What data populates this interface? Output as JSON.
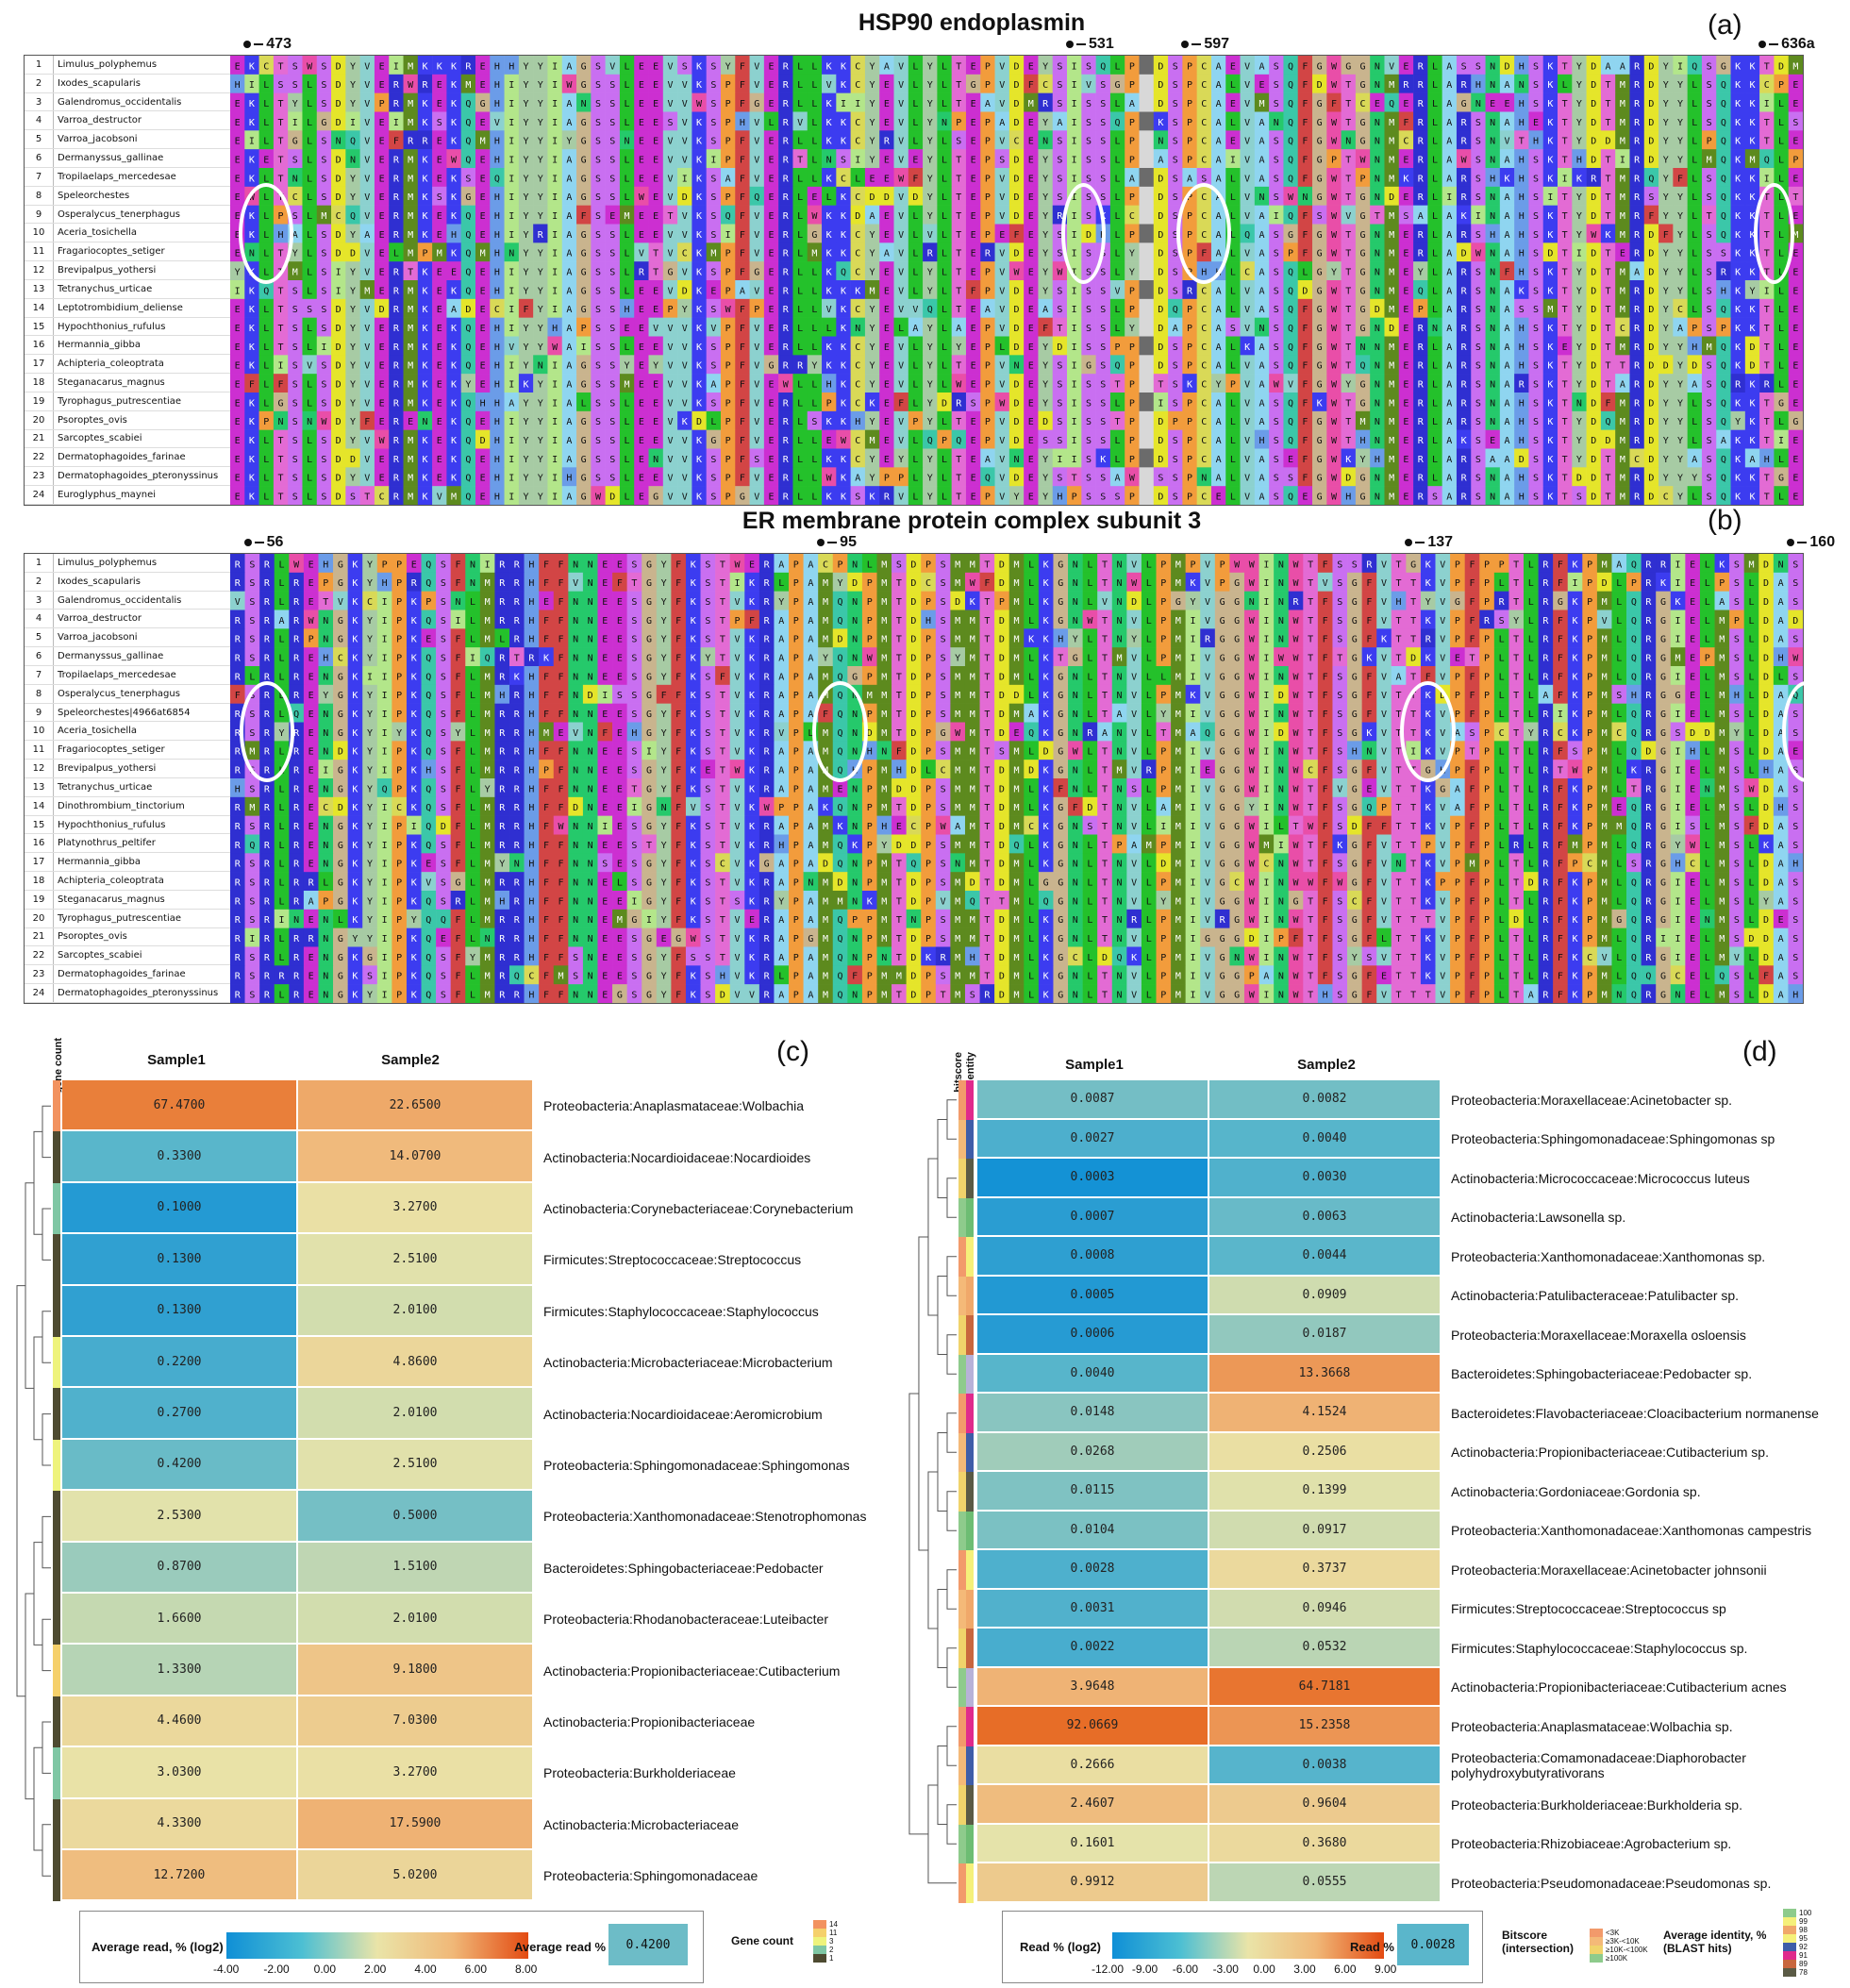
{
  "panel_a": {
    "title": "HSP90 endoplasmin",
    "letter": "(a)",
    "markers": [
      "473",
      "531",
      "597",
      "636a"
    ],
    "species": [
      "Limulus_polyphemus",
      "Ixodes_scapularis",
      "Galendromus_occidentalis",
      "Varroa_destructor",
      "Varroa_jacobsoni",
      "Dermanyssus_gallinae",
      "Tropilaelaps_mercedesae",
      "Speleorchestes",
      "Osperalycus_tenerphagus",
      "Aceria_tosichella",
      "Fragariocoptes_setiger",
      "Brevipalpus_yothersi",
      "Tetranychus_urticae",
      "Leptotrombidium_deliense",
      "Hypochthonius_rufulus",
      "Hermannia_gibba",
      "Achipteria_coleoptrata",
      "Steganacarus_magnus",
      "Tyrophagus_putrescentiae",
      "Psoroptes_ovis",
      "Sarcoptes_scabiei",
      "Dermatophagoides_farinae",
      "Dermatophagoides_pteronyssinus",
      "Euroglyphus_maynei"
    ],
    "consensus": "EKLTSLSDYVERMKEKQEHIYYIAGSSLEEVVKSPFVERLLKKCYEVLYLTEPVDEYSISSLPEDSPCALVASQFGWTGNMERLARSNAHSKTYDTMRDYYLSQKKTLE"
  },
  "panel_b": {
    "title": "ER membrane protein complex subunit 3",
    "letter": "(b)",
    "markers": [
      "56",
      "95",
      "137",
      "160"
    ],
    "species": [
      "Limulus_polyphemus",
      "Ixodes_scapularis",
      "Galendromus_occidentalis",
      "Varroa_destructor",
      "Varroa_jacobsoni",
      "Dermanyssus_gallinae",
      "Tropilaelaps_mercedesae",
      "Osperalycus_tenerphagus",
      "Speleorchestes|4966at6854",
      "Aceria_tosichella",
      "Fragariocoptes_setiger",
      "Brevipalpus_yothersi",
      "Tetranychus_urticae",
      "Dinothrombium_tinctorium",
      "Hypochthonius_rufulus",
      "Platynothrus_peltifer",
      "Hermannia_gibba",
      "Achipteria_coleoptrata",
      "Steganacarus_magnus",
      "Tyrophagus_putrescentiae",
      "Psoroptes_ovis",
      "Sarcoptes_scabiei",
      "Dermatophagoides_farinae",
      "Dermatophagoides_pteronyssinus"
    ],
    "consensus": "RSRLRENGKYIPKQSFLMRRHFFNNEESGYFKSTVKRAPAMQNPMTDPSMMTDMLKGNLTNVLPMIVGGWINWTFSGFVTTKVPFPLTLRFKPMLQRGIELMSLDAS"
  },
  "panel_c": {
    "letter": "(c)",
    "side_label": "gene count",
    "col_heads": [
      "Sample1",
      "Sample2"
    ],
    "rows": [
      {
        "s1": "67.4700",
        "s2": "22.6500",
        "label": "Proteobacteria:Anaplasmataceae:Wolbachia",
        "gc": "14"
      },
      {
        "s1": "0.3300",
        "s2": "14.0700",
        "label": "Actinobacteria:Nocardioidaceae:Nocardioides",
        "gc": "1"
      },
      {
        "s1": "0.1000",
        "s2": "3.2700",
        "label": "Actinobacteria:Corynebacteriaceae:Corynebacterium",
        "gc": "2"
      },
      {
        "s1": "0.1300",
        "s2": "2.5100",
        "label": "Firmicutes:Streptococcaceae:Streptococcus",
        "gc": "1"
      },
      {
        "s1": "0.1300",
        "s2": "2.0100",
        "label": "Firmicutes:Staphylococcaceae:Staphylococcus",
        "gc": "1"
      },
      {
        "s1": "0.2200",
        "s2": "4.8600",
        "label": "Actinobacteria:Microbacteriaceae:Microbacterium",
        "gc": "3"
      },
      {
        "s1": "0.2700",
        "s2": "2.0100",
        "label": "Actinobacteria:Nocardioidaceae:Aeromicrobium",
        "gc": "1"
      },
      {
        "s1": "0.4200",
        "s2": "2.5100",
        "label": "Proteobacteria:Sphingomonadaceae:Sphingomonas",
        "gc": "3"
      },
      {
        "s1": "2.5300",
        "s2": "0.5000",
        "label": "Proteobacteria:Xanthomonadaceae:Stenotrophomonas",
        "gc": "1"
      },
      {
        "s1": "0.8700",
        "s2": "1.5100",
        "label": "Bacteroidetes:Sphingobacteriaceae:Pedobacter",
        "gc": "1"
      },
      {
        "s1": "1.6600",
        "s2": "2.0100",
        "label": "Proteobacteria:Rhodanobacteraceae:Luteibacter",
        "gc": "1"
      },
      {
        "s1": "1.3300",
        "s2": "9.1800",
        "label": "Actinobacteria:Propionibacteriaceae:Cutibacterium",
        "gc": "11"
      },
      {
        "s1": "4.4600",
        "s2": "7.0300",
        "label": "Actinobacteria:Propionibacteriaceae",
        "gc": "1"
      },
      {
        "s1": "3.0300",
        "s2": "3.2700",
        "label": "Proteobacteria:Burkholderiaceae",
        "gc": "2"
      },
      {
        "s1": "4.3300",
        "s2": "17.5900",
        "label": "Actinobacteria:Microbacteriaceae",
        "gc": "1"
      },
      {
        "s1": "12.7200",
        "s2": "5.0200",
        "label": "Proteobacteria:Sphingomonadaceae",
        "gc": "1"
      }
    ],
    "legend": {
      "scale_title": "Average read, % (log2)",
      "scale_ticks": [
        "-4.00",
        "-2.00",
        "0.00",
        "2.00",
        "4.00",
        "6.00",
        "8.00"
      ],
      "swatch_title": "Average read %",
      "swatch_value": "0.4200",
      "gene_title": "Gene count",
      "gene_ticks": [
        "14",
        "11",
        "3",
        "2",
        "1"
      ]
    }
  },
  "panel_d": {
    "letter": "(d)",
    "side_label_1": "bitscore",
    "side_label_2": "identity",
    "col_heads": [
      "Sample1",
      "Sample2"
    ],
    "rows": [
      {
        "s1": "0.0087",
        "s2": "0.0082",
        "label": "Proteobacteria:Moraxellaceae:Acinetobacter sp."
      },
      {
        "s1": "0.0027",
        "s2": "0.0040",
        "label": "Proteobacteria:Sphingomonadaceae:Sphingomonas sp"
      },
      {
        "s1": "0.0003",
        "s2": "0.0030",
        "label": "Actinobacteria:Micrococcaceae:Micrococcus luteus"
      },
      {
        "s1": "0.0007",
        "s2": "0.0063",
        "label": "Actinobacteria:Lawsonella sp."
      },
      {
        "s1": "0.0008",
        "s2": "0.0044",
        "label": "Proteobacteria:Xanthomonadaceae:Xanthomonas sp."
      },
      {
        "s1": "0.0005",
        "s2": "0.0909",
        "label": "Actinobacteria:Patulibacteraceae:Patulibacter sp."
      },
      {
        "s1": "0.0006",
        "s2": "0.0187",
        "label": "Proteobacteria:Moraxellaceae:Moraxella osloensis"
      },
      {
        "s1": "0.0040",
        "s2": "13.3668",
        "label": "Bacteroidetes:Sphingobacteriaceae:Pedobacter sp."
      },
      {
        "s1": "0.0148",
        "s2": "4.1524",
        "label": "Bacteroidetes:Flavobacteriaceae:Cloacibacterium normanense"
      },
      {
        "s1": "0.0268",
        "s2": "0.2506",
        "label": "Actinobacteria:Propionibacteriaceae:Cutibacterium sp."
      },
      {
        "s1": "0.0115",
        "s2": "0.1399",
        "label": "Actinobacteria:Gordoniaceae:Gordonia sp."
      },
      {
        "s1": "0.0104",
        "s2": "0.0917",
        "label": "Proteobacteria:Xanthomonadaceae:Xanthomonas campestris"
      },
      {
        "s1": "0.0028",
        "s2": "0.3737",
        "label": "Proteobacteria:Moraxellaceae:Acinetobacter johnsonii"
      },
      {
        "s1": "0.0031",
        "s2": "0.0946",
        "label": "Firmicutes:Streptococcaceae:Streptococcus sp"
      },
      {
        "s1": "0.0022",
        "s2": "0.0532",
        "label": "Firmicutes:Staphylococcaceae:Staphylococcus sp."
      },
      {
        "s1": "3.9648",
        "s2": "64.7181",
        "label": "Actinobacteria:Propionibacteriaceae:Cutibacterium acnes"
      },
      {
        "s1": "92.0669",
        "s2": "15.2358",
        "label": "Proteobacteria:Anaplasmataceae:Wolbachia sp."
      },
      {
        "s1": "0.2666",
        "s2": "0.0038",
        "label": "Proteobacteria:Comamonadaceae:Diaphorobacter polyhydroxybutyrativorans"
      },
      {
        "s1": "2.4607",
        "s2": "0.9604",
        "label": "Proteobacteria:Burkholderiaceae:Burkholderia sp."
      },
      {
        "s1": "0.1601",
        "s2": "0.3680",
        "label": "Proteobacteria:Rhizobiaceae:Agrobacterium sp."
      },
      {
        "s1": "0.9912",
        "s2": "0.0555",
        "label": "Proteobacteria:Pseudomonadaceae:Pseudomonas sp."
      }
    ],
    "legend": {
      "scale_title": "Read % (log2)",
      "scale_ticks": [
        "-12.00",
        "-9.00",
        "-6.00",
        "-3.00",
        "0.00",
        "3.00",
        "6.00",
        "9.00"
      ],
      "swatch_title": "Read %",
      "swatch_value": "0.0028",
      "bitscore_title_1": "Bitscore",
      "bitscore_title_2": "(intersection)",
      "bitscore_ticks": [
        "<3K",
        "≥3K-<10K",
        "≥10K-<100K",
        "≥100K"
      ],
      "identity_title_1": "Average identity, %",
      "identity_title_2": "(BLAST hits)",
      "identity_ticks": [
        "100",
        "99",
        "98",
        "95",
        "92",
        "91",
        "89",
        "78"
      ]
    }
  }
}
